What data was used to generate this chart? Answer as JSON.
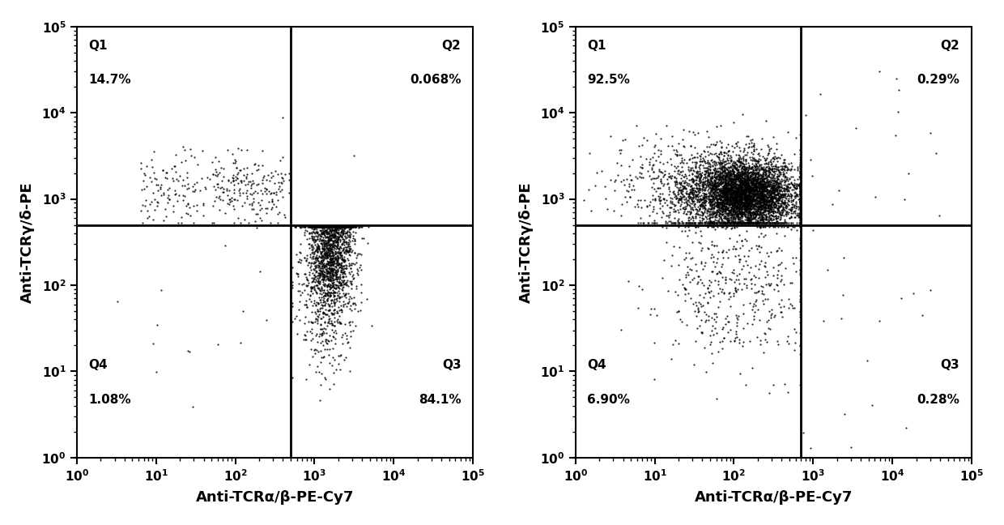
{
  "plot1": {
    "q_labels": [
      "Q1",
      "Q2",
      "Q3",
      "Q4"
    ],
    "q_pcts": [
      "14.7%",
      "0.068%",
      "84.1%",
      "1.08%"
    ],
    "gate_x": 500,
    "gate_y": 500
  },
  "plot2": {
    "q_labels": [
      "Q1",
      "Q2",
      "Q3",
      "Q4"
    ],
    "q_pcts": [
      "92.5%",
      "0.29%",
      "0.28%",
      "6.90%"
    ],
    "gate_x": 700,
    "gate_y": 500
  },
  "xlabel": "Anti-TCRα/β-PE-Cy7",
  "ylabel": "Anti-TCRγ/δ-PE",
  "xlim": [
    1,
    100000
  ],
  "ylim": [
    1,
    100000
  ],
  "dot_color": "#000000",
  "dot_size": 2.5,
  "dot_alpha": 0.85,
  "line_color": "#000000",
  "line_width": 2.0,
  "font_size_axis_label": 13,
  "font_size_tick": 11,
  "font_size_quad": 11,
  "background_color": "#ffffff"
}
